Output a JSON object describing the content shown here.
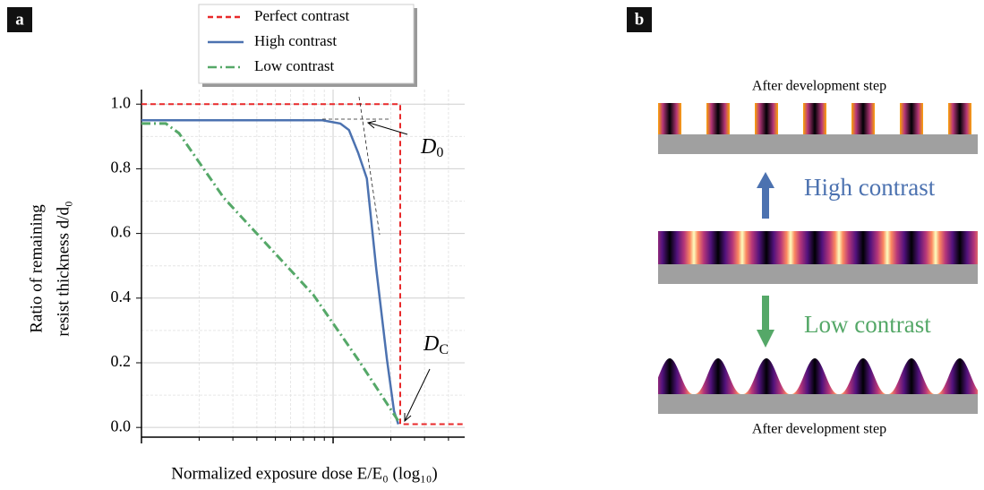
{
  "chart_data": {
    "type": "line",
    "panel_label": "a",
    "xlabel": "Normalized exposure dose E/E₀ (log₁₀)",
    "ylabel": [
      "Ratio of remaining",
      "resist thickness d/d₀"
    ],
    "xscale": "log",
    "xlim": [
      0.1,
      4.86
    ],
    "xticks": [
      0.1,
      1
    ],
    "ylim": [
      -0.03,
      1.045
    ],
    "yticks": [
      {
        "value": 0,
        "label": "0.0"
      },
      {
        "value": 0.2,
        "label": "0.2"
      },
      {
        "value": 0.4,
        "label": "0.4"
      },
      {
        "value": 0.6,
        "label": "0.6"
      },
      {
        "value": 0.8,
        "label": "0.8"
      },
      {
        "value": 1,
        "label": "1.0"
      }
    ],
    "grid": true,
    "legend": "upper center",
    "series": [
      {
        "name": "Perfect contrast",
        "color": "#e8292a",
        "dash": "dashed",
        "x": [
          0.1,
          2.24,
          2.24,
          4.86
        ],
        "values": [
          1,
          1,
          0.01,
          0.01
        ]
      },
      {
        "name": "High contrast",
        "color": "#4c72b0",
        "dash": "solid",
        "x": [
          0.1,
          0.5,
          0.88,
          1.09,
          1.21,
          1.35,
          1.5,
          1.68,
          1.91,
          2.08,
          2.19
        ],
        "values": [
          0.95,
          0.95,
          0.95,
          0.94,
          0.92,
          0.85,
          0.77,
          0.49,
          0.21,
          0.05,
          0.01
        ]
      },
      {
        "name": "Low contrast",
        "color": "#55a868",
        "dash": "dashdot",
        "x": [
          0.1,
          0.134,
          0.157,
          0.269,
          0.461,
          0.789,
          1.35,
          2.19
        ],
        "values": [
          0.94,
          0.94,
          0.91,
          0.71,
          0.56,
          0.41,
          0.21,
          0.02
        ]
      }
    ],
    "annotations": [
      {
        "main": "D",
        "sub": "0"
      },
      {
        "main": "D",
        "sub": "C"
      }
    ]
  },
  "diagram": {
    "panel_label": "b",
    "top_caption": "After development step",
    "high_label": "High contrast",
    "low_label": "Low contrast",
    "bottom_caption": "After development step"
  }
}
